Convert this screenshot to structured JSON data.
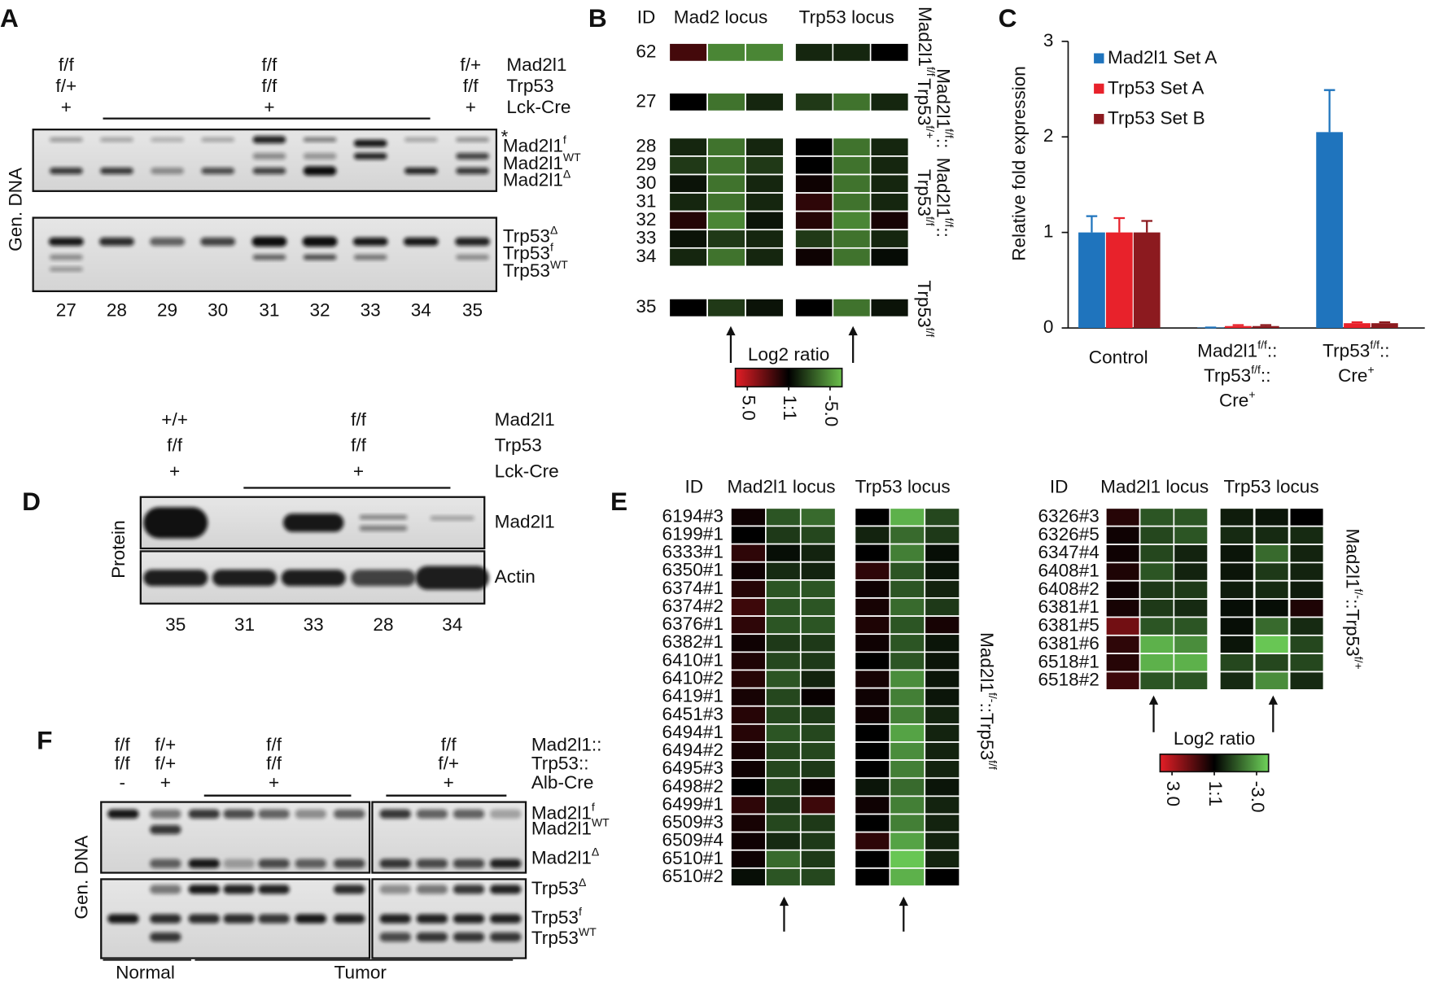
{
  "panels": {
    "A": {
      "label": "A",
      "genotypes": [
        [
          "f/f",
          "f/+",
          "+"
        ],
        [
          "f/f",
          "f/f",
          "+"
        ],
        [
          "f/+",
          "f/f",
          "+"
        ]
      ],
      "rows": [
        "Mad2l1",
        "Trp53",
        "Lck-Cre"
      ],
      "asterisk": "*",
      "bands": [
        [
          "Mad2l1",
          {
            "sup": "f"
          }
        ],
        [
          "Mad2l1",
          {
            "sup": "WT"
          }
        ],
        [
          "Mad2l1",
          {
            "sup": "Δ"
          }
        ],
        [
          "Trp53",
          {
            "sup": "Δ"
          }
        ],
        [
          "Trp53",
          {
            "sup": "f"
          }
        ],
        [
          "Trp53",
          {
            "sup": "WT"
          }
        ]
      ],
      "side_label": "Gen. DNA",
      "lanes": [
        "27",
        "28",
        "29",
        "30",
        "31",
        "32",
        "33",
        "34",
        "35"
      ]
    },
    "B": {
      "label": "B",
      "header": [
        "ID",
        "Mad2 locus",
        "Trp53 locus"
      ],
      "rows": [
        {
          "id": "62",
          "values": [
            1.5,
            -3.5,
            -3.5,
            -1,
            -1,
            0
          ]
        },
        {
          "id": "27",
          "values": [
            0,
            -3,
            -1,
            -1.5,
            -3,
            -1
          ]
        },
        {
          "id": "28",
          "values": [
            -1,
            -3,
            -1,
            0,
            -3,
            -1
          ]
        },
        {
          "id": "29",
          "values": [
            -1.5,
            -3,
            -1.5,
            0,
            -3,
            -1
          ]
        },
        {
          "id": "30",
          "values": [
            -0.5,
            -3,
            -1,
            0.3,
            -3,
            -1
          ]
        },
        {
          "id": "31",
          "values": [
            -1,
            -3,
            -1,
            1,
            -3,
            -1
          ]
        },
        {
          "id": "32",
          "values": [
            0.8,
            -3.5,
            -0.5,
            0.8,
            -3.5,
            0.5
          ]
        },
        {
          "id": "33",
          "values": [
            -0.5,
            -1.5,
            -1,
            -1.5,
            -3,
            -1
          ]
        },
        {
          "id": "34",
          "values": [
            -1,
            -3,
            -1,
            0.3,
            -3,
            -0.3
          ]
        },
        {
          "id": "35",
          "values": [
            0,
            -1.5,
            -0.5,
            0,
            -3,
            -0.5
          ]
        }
      ],
      "side_labels": [
        [
          [
            "Mad2l1",
            {
              "sup": "f/f"
            }
          ]
        ],
        [
          [
            "Mad2l1",
            {
              "sup": "f/f"
            },
            "::"
          ],
          [
            "Trp53",
            {
              "sup": "f/+"
            }
          ]
        ],
        [
          [
            "Mad2l1",
            {
              "sup": "f/f"
            },
            "::"
          ],
          [
            "Trp53",
            {
              "sup": "f/f"
            }
          ]
        ],
        [
          [
            "Trp53",
            {
              "sup": "f/f"
            }
          ]
        ]
      ],
      "scale": {
        "title": "Log2 ratio",
        "range": [
          5,
          -5
        ],
        "colors": [
          "#e41e26",
          "#000000",
          "#6abf4b"
        ],
        "ticks": [
          {
            "value": 5,
            "label": "5.0"
          },
          {
            "value": 0,
            "label": "1:1"
          },
          {
            "value": -5,
            "label": "-5.0"
          }
        ]
      }
    },
    "D": {
      "label": "D",
      "genotypes": [
        [
          "+/+",
          "f/f",
          "+"
        ],
        [
          "f/f",
          "f/f",
          "+"
        ]
      ],
      "rows": [
        "Mad2l1",
        "Trp53",
        "Lck-Cre"
      ],
      "bands": [
        "Mad2l1",
        "Actin"
      ],
      "side_label": "Protein",
      "lanes": [
        "35",
        "31",
        "33",
        "28",
        "34"
      ]
    },
    "E": {
      "label": "E",
      "left": {
        "header": [
          "ID",
          "Mad2l1 locus",
          "Trp53 locus"
        ],
        "side_label": [
          "Mad2l1",
          {
            "sup": "f/-"
          },
          "::Trp53",
          {
            "sup": "f/f"
          }
        ],
        "rows": [
          {
            "id": "6194#3",
            "values": [
              0.2,
              -1.2,
              -1.5,
              0,
              -2.5,
              -1
            ]
          },
          {
            "id": "6199#1",
            "values": [
              0,
              -0.8,
              -1,
              -0.5,
              -1.5,
              -0.8
            ]
          },
          {
            "id": "6333#1",
            "values": [
              0.6,
              -0.2,
              -0.5,
              0,
              -1.8,
              -0.2
            ]
          },
          {
            "id": "6350#1",
            "values": [
              0.2,
              -0.6,
              -0.5,
              0.6,
              -1.2,
              -0.3
            ]
          },
          {
            "id": "6374#1",
            "values": [
              0.5,
              -1.2,
              -1.2,
              0.2,
              -1.2,
              -0.5
            ]
          },
          {
            "id": "6374#2",
            "values": [
              0.8,
              -1.2,
              -1.2,
              0.3,
              -1.5,
              -0.8
            ]
          },
          {
            "id": "6376#1",
            "values": [
              0.6,
              -1.2,
              -1.2,
              0.4,
              -1.2,
              0.3
            ]
          },
          {
            "id": "6382#1",
            "values": [
              0.2,
              -0.8,
              -0.8,
              0.2,
              -1.2,
              -0.3
            ]
          },
          {
            "id": "6410#1",
            "values": [
              0.4,
              -1,
              -0.8,
              0,
              -1.2,
              -0.3
            ]
          },
          {
            "id": "6410#2",
            "values": [
              0.5,
              -1.2,
              -0.5,
              0.3,
              -2,
              -0.3
            ]
          },
          {
            "id": "6419#1",
            "values": [
              0.3,
              -1,
              0.1,
              0.2,
              -1.8,
              -0.3
            ]
          },
          {
            "id": "6451#3",
            "values": [
              0.5,
              -1,
              -0.8,
              0.2,
              -1.8,
              -0.5
            ]
          },
          {
            "id": "6494#1",
            "values": [
              0.5,
              -1.2,
              -1,
              0,
              -2.3,
              -0.5
            ]
          },
          {
            "id": "6494#2",
            "values": [
              0.3,
              -1,
              -1,
              0,
              -2,
              -0.5
            ]
          },
          {
            "id": "6495#3",
            "values": [
              0.2,
              -1,
              -0.8,
              0,
              -1.8,
              -0.5
            ]
          },
          {
            "id": "6498#2",
            "values": [
              0,
              -1,
              0.1,
              -0.3,
              -1.5,
              -0.3
            ]
          },
          {
            "id": "6499#1",
            "values": [
              0.6,
              -0.8,
              0.8,
              0.2,
              -1.8,
              -0.5
            ]
          },
          {
            "id": "6509#3",
            "values": [
              0.3,
              -1,
              -0.8,
              0,
              -1.8,
              -0.5
            ]
          },
          {
            "id": "6509#4",
            "values": [
              0.2,
              -0.6,
              -0.8,
              0.6,
              -2.3,
              -0.5
            ]
          },
          {
            "id": "6510#1",
            "values": [
              0.2,
              -1.5,
              -0.8,
              0,
              -2.8,
              -0.5
            ]
          },
          {
            "id": "6510#2",
            "values": [
              -0.2,
              -1.2,
              -1,
              0,
              -2.5,
              0
            ]
          }
        ]
      },
      "right": {
        "header": [
          "ID",
          "Mad2l1 locus",
          "Trp53 locus"
        ],
        "side_label": [
          "Mad2l1",
          {
            "sup": "f/-"
          },
          "::Trp53",
          {
            "sup": "f/+"
          }
        ],
        "rows": [
          {
            "id": "6326#3",
            "values": [
              0.5,
              -1.2,
              -1.2,
              -0.4,
              -0.3,
              0
            ]
          },
          {
            "id": "6326#5",
            "values": [
              0.2,
              -1,
              -1.2,
              -0.6,
              -0.6,
              -0.6
            ]
          },
          {
            "id": "6347#4",
            "values": [
              0.2,
              -1,
              -0.5,
              -0.3,
              -1.5,
              -0.5
            ]
          },
          {
            "id": "6408#1",
            "values": [
              0.4,
              -1.2,
              -0.5,
              -0.3,
              -0.8,
              -0.5
            ]
          },
          {
            "id": "6408#2",
            "values": [
              0.2,
              -0.8,
              -0.8,
              -0.4,
              -0.6,
              -0.4
            ]
          },
          {
            "id": "6381#1",
            "values": [
              0.3,
              -0.8,
              -0.6,
              -0.2,
              -0.2,
              0.4
            ]
          },
          {
            "id": "6381#5",
            "values": [
              1.5,
              -1.2,
              -1.2,
              -0.2,
              -1.5,
              -0.6
            ]
          },
          {
            "id": "6381#6",
            "values": [
              0.6,
              -2.5,
              -2,
              -0.3,
              -2.8,
              -1
            ]
          },
          {
            "id": "6518#1",
            "values": [
              0.5,
              -2.5,
              -2.5,
              -1,
              -1,
              -1
            ]
          },
          {
            "id": "6518#2",
            "values": [
              0.8,
              -1.2,
              -1.2,
              -0.6,
              -2,
              -0.6
            ]
          }
        ]
      },
      "scale": {
        "title": "Log2 ratio",
        "range": [
          3,
          -3
        ],
        "colors": [
          "#e41e26",
          "#000000",
          "#6fd45a"
        ],
        "ticks": [
          {
            "value": 3,
            "label": "3.0"
          },
          {
            "value": 0,
            "label": "1:1"
          },
          {
            "value": -3,
            "label": "-3.0"
          }
        ]
      }
    },
    "F": {
      "label": "F",
      "genotypes": [
        [
          "f/f",
          "f/f",
          "-"
        ],
        [
          "f/+",
          "f/+",
          "+"
        ],
        [
          "f/f",
          "f/f",
          "+"
        ],
        [
          "f/f",
          "f/+",
          "+"
        ]
      ],
      "rows": [
        "Mad2l1::",
        "Trp53::",
        "Alb-Cre"
      ],
      "bands": [
        [
          "Mad2l1",
          {
            "sup": "f"
          }
        ],
        [
          "Mad2l1",
          {
            "sup": "WT"
          }
        ],
        [
          "Mad2l1",
          {
            "sup": "Δ"
          }
        ],
        [
          "Trp53",
          {
            "sup": "Δ"
          }
        ],
        [
          "Trp53",
          {
            "sup": "f"
          }
        ],
        [
          "Trp53",
          {
            "sup": "WT"
          }
        ]
      ],
      "side_label": "Gen. DNA",
      "groups": [
        "Normal",
        "Tumor"
      ]
    }
  },
  "chart_data": {
    "type": "bar",
    "panel_label": "C",
    "y_label": "Relative fold expression",
    "categories": [
      [
        [
          "Control"
        ]
      ],
      [
        [
          "Mad2l1",
          {
            "sup": "f/f"
          },
          "::"
        ],
        [
          "Trp53",
          {
            "sup": "f/f"
          },
          "::"
        ],
        [
          "Cre",
          {
            "sup": "+"
          }
        ]
      ],
      [
        [
          "Trp53",
          {
            "sup": "f/f"
          },
          "::"
        ],
        [
          "Cre",
          {
            "sup": "+"
          }
        ]
      ]
    ],
    "series": [
      {
        "name": "Mad2l1 Set A",
        "color": "#1f74bd",
        "values": [
          1.0,
          0.005,
          2.05
        ],
        "errors": [
          0.17,
          0,
          0.44
        ]
      },
      {
        "name": "Trp53 Set A",
        "color": "#e8222b",
        "values": [
          1.0,
          0.02,
          0.05
        ],
        "errors": [
          0.15,
          0.01,
          0.01
        ]
      },
      {
        "name": "Trp53 Set B",
        "color": "#8c1a1f",
        "values": [
          1.0,
          0.02,
          0.05
        ],
        "errors": [
          0.12,
          0.01,
          0.01
        ]
      }
    ],
    "ylim": [
      0,
      3
    ],
    "yticks": [
      0,
      1,
      2,
      3
    ],
    "legend": "upper left"
  }
}
